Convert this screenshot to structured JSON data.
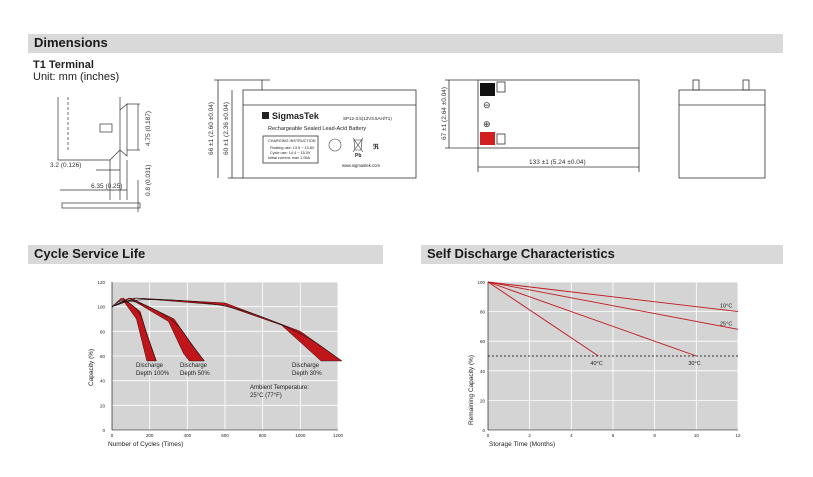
{
  "sections": {
    "dimensions": "Dimensions",
    "cycle": "Cycle Service Life",
    "self_discharge": "Self Discharge Characteristics"
  },
  "terminal": {
    "title": "T1 Terminal",
    "unit": "Unit: mm (inches)",
    "dim_height": "4.75 (0.187)",
    "dim_w1": "3.2 (0.126)",
    "dim_w2": "6.35 (0.25)",
    "dim_thick": "0.8 (0.031)"
  },
  "front_view": {
    "dim_outer": "66 ±1 (2.60 ±0.04)",
    "dim_inner": "60 ±1 (2.36 ±0.04)",
    "brand": "SigmasTek",
    "model": "SP12-3.5(12V3.5AH/T1)",
    "subtitle": "Rechargeable Sealed Lead-Acid Battery",
    "charging_title": "CHARGING INSTRUCTION",
    "charge_float": "Floating use: 13.5 ~ 13.8V",
    "charge_cycle": "Cycle use: 14.4 ~ 15.0V",
    "charge_current": "Initial current: max 1.05A",
    "website": "www.sigmastek.com",
    "pb_label": "Pb"
  },
  "top_view": {
    "dim_depth": "67 ±1 (2.64 ±0.04)",
    "dim_length": "133 ±1 (5.24 ±0.04)",
    "neg_symbol": "⊖",
    "pos_symbol": "⊕"
  },
  "chart_data": [
    {
      "type": "line",
      "title": "Cycle Service Life",
      "xlabel": "Number of Cycles (Times)",
      "ylabel": "Capacity (%)",
      "xlim": [
        0,
        1200
      ],
      "ylim": [
        0,
        120
      ],
      "x_ticks": [
        "0",
        "200",
        "400",
        "600",
        "800",
        "1000",
        "1200"
      ],
      "y_ticks": [
        "0",
        "20",
        "40",
        "60",
        "80",
        "100",
        "120"
      ],
      "grid": true,
      "series": [
        {
          "name": "Discharge Depth 100%",
          "band_start": [
            [
              0,
              100
            ],
            [
              60,
              107
            ],
            [
              150,
              96
            ],
            [
              180,
              80
            ],
            [
              235,
              56
            ]
          ],
          "band_end": [
            [
              0,
              100
            ],
            [
              50,
              107
            ],
            [
              130,
              90
            ],
            [
              185,
              56
            ]
          ]
        },
        {
          "name": "Discharge Depth 50%",
          "band_start": [
            [
              0,
              100
            ],
            [
              100,
              107
            ],
            [
              330,
              90
            ],
            [
              420,
              70
            ],
            [
              490,
              56
            ]
          ],
          "band_end": [
            [
              0,
              100
            ],
            [
              90,
              107
            ],
            [
              300,
              88
            ],
            [
              380,
              62
            ],
            [
              410,
              56
            ]
          ]
        },
        {
          "name": "Discharge Depth 30%",
          "band_start": [
            [
              0,
              100
            ],
            [
              130,
              107
            ],
            [
              600,
              103
            ],
            [
              1000,
              80
            ],
            [
              1220,
              56
            ]
          ],
          "band_end": [
            [
              0,
              100
            ],
            [
              120,
              107
            ],
            [
              600,
              101
            ],
            [
              900,
              85
            ],
            [
              1110,
              56
            ]
          ]
        }
      ],
      "annotations": {
        "d100": [
          "Discharge",
          "Depth 100%"
        ],
        "d50": [
          "Discharge",
          "Depth 50%"
        ],
        "d30": [
          "Discharge",
          "Depth 30%"
        ],
        "ambient": [
          "Ambient Temperature:",
          "25°C (77°F)"
        ]
      },
      "colors": {
        "band": "#c0161b",
        "band_edge": "#3a0000",
        "grid": "#ffffff",
        "plot_bg": "#d4d4d4",
        "axis": "#000000"
      }
    },
    {
      "type": "line",
      "title": "Self Discharge Characteristics",
      "xlabel": "Storage Time (Months)",
      "ylabel": "Remaining Capacity (%)",
      "xlim": [
        0,
        12
      ],
      "ylim": [
        0,
        100
      ],
      "x_ticks": [
        "0",
        "2",
        "4",
        "6",
        "8",
        "10",
        "12"
      ],
      "y_ticks": [
        "0",
        "20",
        "40",
        "60",
        "80",
        "100"
      ],
      "grid": true,
      "threshold": 50,
      "series": [
        {
          "name": "10°C",
          "x": [
            0,
            12
          ],
          "y": [
            100,
            80
          ]
        },
        {
          "name": "25°C",
          "x": [
            0,
            12
          ],
          "y": [
            100,
            68
          ]
        },
        {
          "name": "30°C",
          "x": [
            0,
            10
          ],
          "y": [
            100,
            50
          ]
        },
        {
          "name": "40°C",
          "x": [
            0,
            5.3
          ],
          "y": [
            100,
            50
          ]
        }
      ],
      "colors": {
        "line": "#c0161b",
        "grid": "#ffffff",
        "plot_bg": "#d4d4d4",
        "threshold": "#000000"
      }
    }
  ]
}
